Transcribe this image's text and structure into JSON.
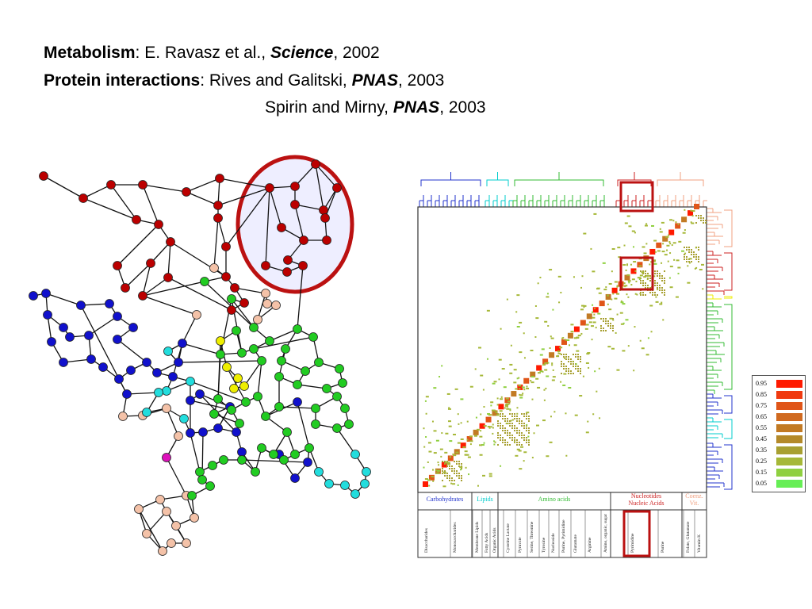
{
  "citations": {
    "metabolism": {
      "topic": "Metabolism",
      "text": ": E. Ravasz et al., ",
      "journal": "Science",
      "year": ", 2002"
    },
    "protein": {
      "topic": "Protein interactions",
      "text": ": Rives and Galitski, ",
      "journal": "PNAS",
      "year": ", 2003"
    },
    "protein2": {
      "text": "Spirin and Mirny, ",
      "journal": "PNAS",
      "year": ", 2003"
    }
  },
  "legend": {
    "labels": [
      "0.95",
      "0.85",
      "0.75",
      "0.65",
      "0.55",
      "0.45",
      "0.35",
      "0.25",
      "0.15",
      "0.05"
    ],
    "colors": [
      "#ff1a00",
      "#f03a10",
      "#e05518",
      "#d06a20",
      "#c27a24",
      "#b48a2a",
      "#a8a032",
      "#a6b838",
      "#8fd040",
      "#66ee55"
    ]
  },
  "categories": [
    {
      "label": "Carbohydrates",
      "color": "#2233cc"
    },
    {
      "label": "Lipids",
      "color": "#00cccc"
    },
    {
      "label": "Amino acids",
      "color": "#33bb33"
    },
    {
      "label": "Nucleotides\nNucleic Acids",
      "color": "#cc2222"
    },
    {
      "label": "Coenz.\nVit.",
      "color": "#f0a080"
    }
  ],
  "subcategories": [
    "Disaccharides",
    "Monosaccharides",
    "Membrane Lipids",
    "Fatty Acids",
    "Organic Acids",
    "Cysteine Lactate",
    "Pyruvate",
    "Serine, Threonine",
    "Tyrosine",
    "Nucleoside",
    "Purine, Pyrimidine",
    "Glutamate",
    "Arginine",
    "Amino, organic, sugar",
    "Pyrimidine",
    "Purine",
    "Folate, Glutamate",
    "Vitamin K"
  ],
  "highlight": {
    "color": "#bb1111",
    "module_fill": "#eeeeff"
  },
  "node_colors": {
    "red": "#bb0000",
    "blue": "#1111cc",
    "green": "#22cc22",
    "cyan": "#22dddd",
    "yellow": "#eeee00",
    "peach": "#f4c2a8",
    "magenta": "#dd11bb"
  }
}
